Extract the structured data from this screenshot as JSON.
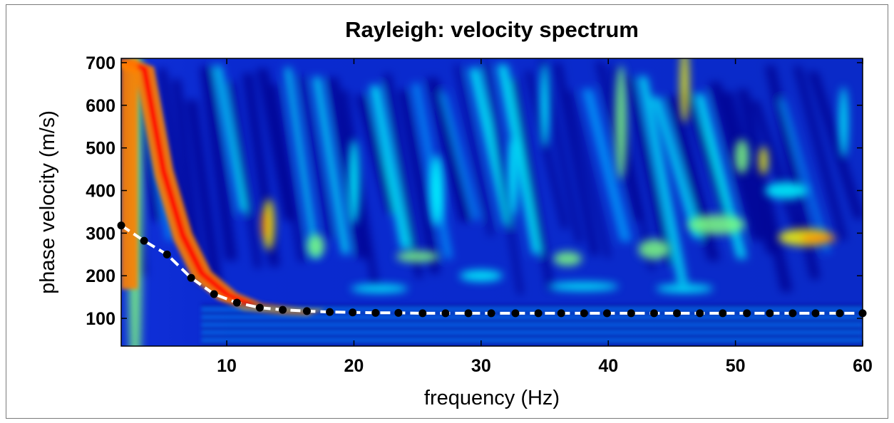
{
  "chart_data": {
    "type": "heatmap",
    "title": "Rayleigh: velocity spectrum",
    "xlabel": "frequency (Hz)",
    "ylabel": "phase velocity (m/s)",
    "xlim": [
      1.7,
      60
    ],
    "ylim": [
      35,
      710
    ],
    "xticks": [
      10,
      20,
      30,
      40,
      50,
      60
    ],
    "yticks": [
      100,
      200,
      300,
      400,
      500,
      600,
      700
    ],
    "colormap": [
      "#00008f",
      "#0000ff",
      "#00a0ff",
      "#00ffff",
      "#7fff7f",
      "#ffff00",
      "#ff7f00",
      "#ff0000",
      "#800000"
    ],
    "picked_curve": {
      "color_line": "#ffffff",
      "color_points": "#000000",
      "points": [
        [
          1.7,
          318
        ],
        [
          3.5,
          282
        ],
        [
          5.3,
          250
        ],
        [
          7.2,
          195
        ],
        [
          9.0,
          157
        ],
        [
          10.8,
          137
        ],
        [
          12.6,
          125
        ],
        [
          14.4,
          120
        ],
        [
          16.3,
          117
        ],
        [
          18.1,
          115
        ],
        [
          19.9,
          114
        ],
        [
          21.7,
          113
        ],
        [
          23.5,
          113
        ],
        [
          25.4,
          112
        ],
        [
          27.2,
          112
        ],
        [
          29.0,
          112
        ],
        [
          30.8,
          112
        ],
        [
          32.7,
          112
        ],
        [
          34.5,
          112
        ],
        [
          36.3,
          112
        ],
        [
          38.1,
          112
        ],
        [
          39.9,
          112
        ],
        [
          41.8,
          112
        ],
        [
          43.6,
          112
        ],
        [
          45.4,
          112
        ],
        [
          47.2,
          112
        ],
        [
          49.0,
          112
        ],
        [
          50.9,
          112
        ],
        [
          52.7,
          112
        ],
        [
          54.5,
          112
        ],
        [
          56.3,
          112
        ],
        [
          58.2,
          112
        ],
        [
          60.0,
          112
        ]
      ]
    }
  }
}
